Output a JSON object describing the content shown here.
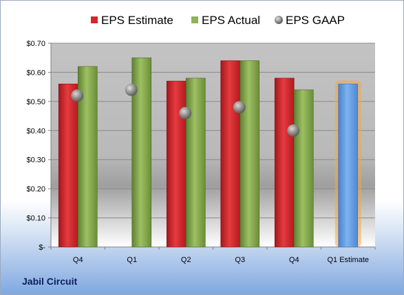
{
  "company_label": "Jabil Circuit",
  "chart_data": {
    "type": "bar",
    "title": "",
    "xlabel": "",
    "ylabel": "",
    "categories": [
      "Q4",
      "Q1",
      "Q2",
      "Q3",
      "Q4",
      "Q1 Estimate"
    ],
    "series": [
      {
        "name": "EPS Estimate",
        "kind": "bar",
        "color": "#e0262b",
        "values": [
          0.56,
          null,
          0.57,
          0.64,
          0.58,
          0.56
        ]
      },
      {
        "name": "EPS Actual",
        "kind": "bar",
        "color": "#8fb357",
        "values": [
          0.62,
          0.65,
          0.58,
          0.64,
          0.54,
          null
        ]
      },
      {
        "name": "EPS GAAP",
        "kind": "marker",
        "color": "#8c8c8c",
        "values": [
          0.52,
          0.54,
          0.46,
          0.48,
          0.4,
          null
        ]
      }
    ],
    "highlight": {
      "category": "Q1 Estimate",
      "color": "#5b9be6",
      "glow": "#f5a54a"
    },
    "ylim": [
      0,
      0.7
    ],
    "yticks": [
      0,
      0.1,
      0.2,
      0.3,
      0.4,
      0.5,
      0.6,
      0.7
    ],
    "ytick_labels": [
      "$-",
      "$0.10",
      "$0.20",
      "$0.30",
      "$0.40",
      "$0.50",
      "$0.60",
      "$0.70"
    ],
    "grid": true,
    "legend_position": "top"
  }
}
